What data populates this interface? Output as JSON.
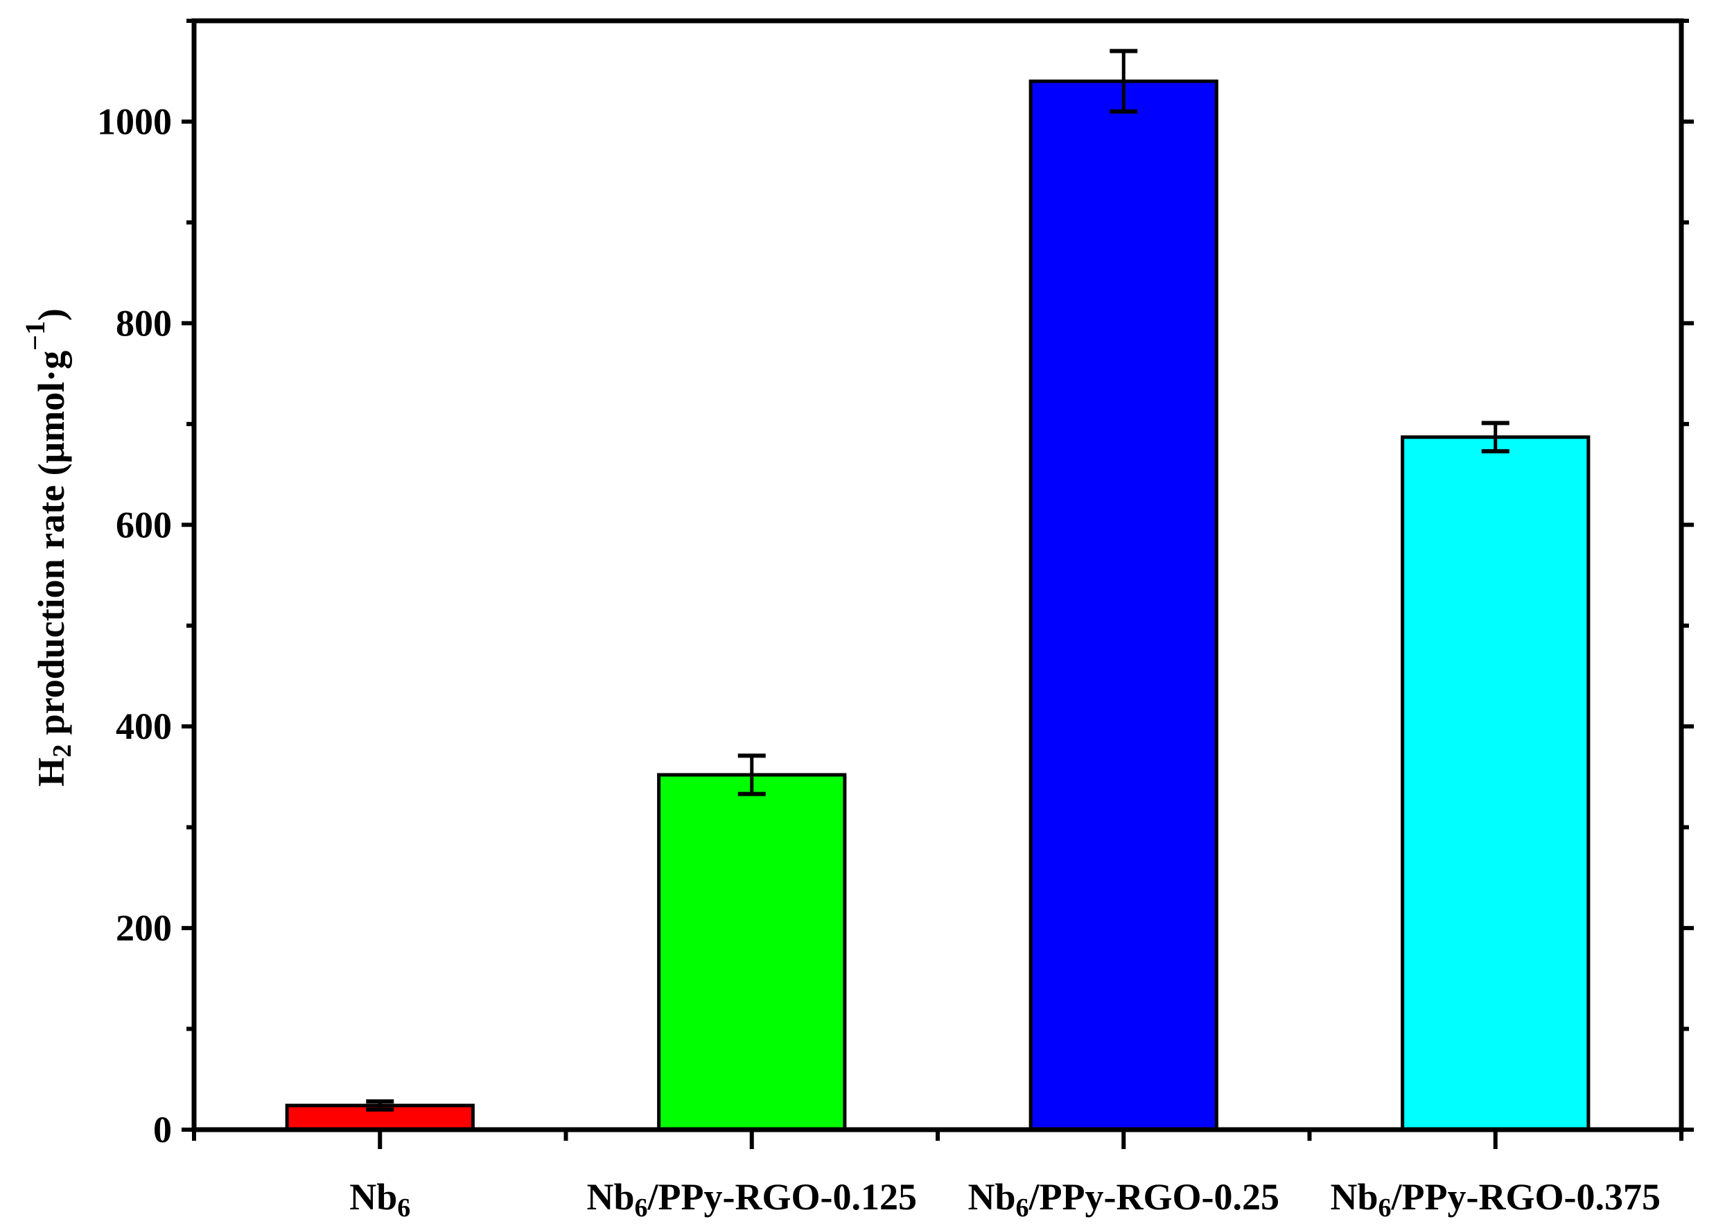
{
  "chart_data": {
    "type": "bar",
    "title": "",
    "categories": [
      {
        "main": "Nb",
        "sub": "6",
        "rest": ""
      },
      {
        "main": "Nb",
        "sub": "6",
        "rest": "/PPy-RGO-0.125"
      },
      {
        "main": "Nb",
        "sub": "6",
        "rest": "/PPy-RGO-0.25"
      },
      {
        "main": "Nb",
        "sub": "6",
        "rest": "/PPy-RGO-0.375"
      }
    ],
    "values": [
      24,
      352,
      1040,
      687
    ],
    "errors": [
      4,
      19,
      30,
      14
    ],
    "colors": [
      "#ff0000",
      "#00ff00",
      "#0000ff",
      "#00ffff"
    ],
    "ylabel": {
      "prefix": "H",
      "sub": "2",
      "text": " production rate (μmol·g",
      "sup": "−1",
      "suffix": ")"
    },
    "xlabel": "",
    "ylim": [
      0,
      1100
    ],
    "yticks_major": [
      0,
      200,
      400,
      600,
      800,
      1000
    ],
    "yticks_minor": [
      100,
      300,
      500,
      700,
      900,
      1100
    ],
    "grid": false,
    "legend": "none",
    "axis_color": "#000000"
  }
}
